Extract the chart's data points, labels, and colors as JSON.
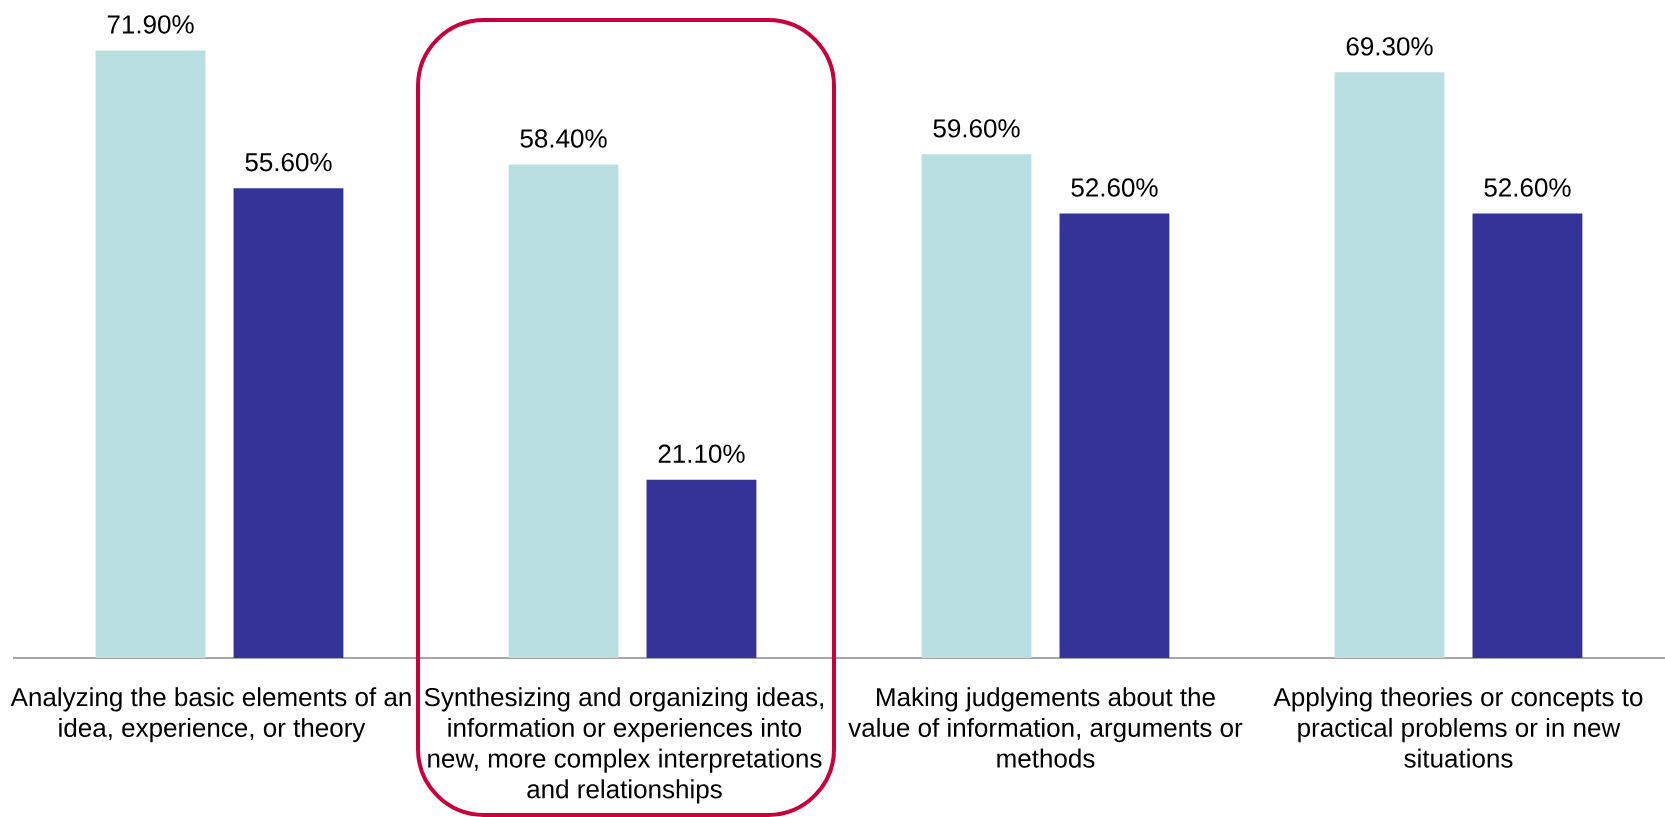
{
  "chart_data": {
    "type": "bar",
    "categories": [
      "Analyzing the basic elements of an idea, experience, or theory",
      "Synthesizing and organizing ideas, information or experiences into new, more complex interpretations and relationships",
      "Making judgements about the value of information, arguments or methods",
      "Applying theories or concepts to practical problems or in new situations"
    ],
    "series": [
      {
        "color": "#b9dfe3",
        "values": [
          71.9,
          58.4,
          59.6,
          69.3
        ],
        "value_labels": [
          "71.90%",
          "58.40%",
          "59.60%",
          "69.30%"
        ]
      },
      {
        "color": "#343397",
        "values": [
          55.6,
          21.1,
          52.6,
          52.6
        ],
        "value_labels": [
          "55.60%",
          "21.10%",
          "52.60%",
          "52.60%"
        ]
      }
    ],
    "tick_labels": "x"
  }
}
